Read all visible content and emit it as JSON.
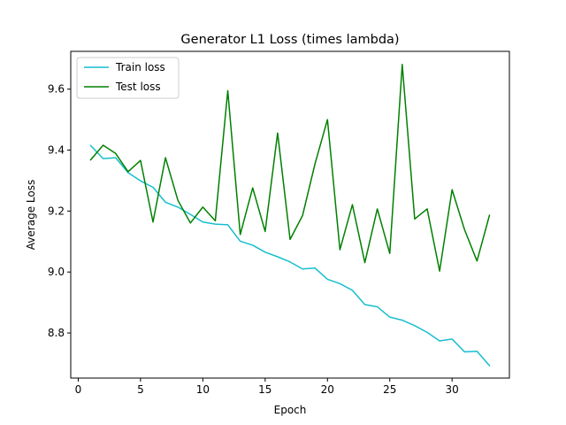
{
  "chart_data": {
    "type": "line",
    "title": "Generator L1 Loss (times lambda)",
    "xlabel": "Epoch",
    "ylabel": "Average Loss",
    "xlim": [
      -0.6,
      34.6
    ],
    "ylim": [
      8.652,
      9.724
    ],
    "xticks": [
      0,
      5,
      10,
      15,
      20,
      25,
      30
    ],
    "yticks": [
      8.8,
      9.0,
      9.2,
      9.4,
      9.6
    ],
    "ytick_labels": [
      "8.8",
      "9.0",
      "9.2",
      "9.4",
      "9.6"
    ],
    "grid": false,
    "legend_position": "top-left",
    "x": [
      1,
      2,
      3,
      4,
      5,
      6,
      7,
      8,
      9,
      10,
      11,
      12,
      13,
      14,
      15,
      16,
      17,
      18,
      19,
      20,
      21,
      22,
      23,
      24,
      25,
      26,
      27,
      28,
      29,
      30,
      31,
      32,
      33
    ],
    "series": [
      {
        "name": "Train loss",
        "color": "#17becf",
        "values": [
          9.415,
          9.372,
          9.375,
          9.326,
          9.299,
          9.278,
          9.229,
          9.213,
          9.189,
          9.164,
          9.157,
          9.155,
          9.101,
          9.088,
          9.065,
          9.05,
          9.033,
          9.01,
          9.013,
          8.976,
          8.962,
          8.94,
          8.893,
          8.886,
          8.852,
          8.842,
          8.824,
          8.802,
          8.774,
          8.78,
          8.738,
          8.74,
          8.693
        ]
      },
      {
        "name": "Test loss",
        "color": "#008000",
        "values": [
          9.368,
          9.416,
          9.389,
          9.329,
          9.366,
          9.164,
          9.375,
          9.235,
          9.161,
          9.213,
          9.168,
          9.595,
          9.123,
          9.276,
          9.133,
          9.456,
          9.107,
          9.185,
          9.355,
          9.5,
          9.073,
          9.221,
          9.031,
          9.207,
          9.061,
          9.681,
          9.174,
          9.207,
          9.003,
          9.27,
          9.139,
          9.036,
          9.186
        ]
      }
    ]
  }
}
